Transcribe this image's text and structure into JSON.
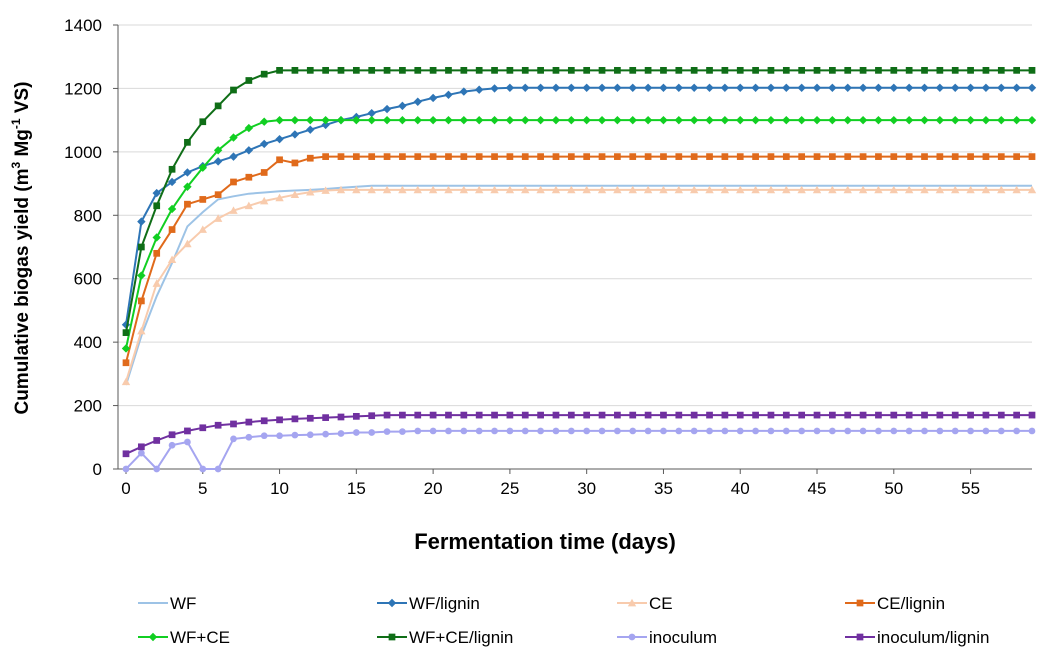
{
  "chart_data": {
    "type": "line",
    "xlabel": "Fermentation time (days)",
    "ylabel_parts": {
      "main": "Cumulative biogas yield (m",
      "sup1": "3",
      "mid": " Mg",
      "sup2": "-1",
      "end": " VS)"
    },
    "xlim": [
      0,
      59
    ],
    "ylim": [
      0,
      1400
    ],
    "xticks": [
      0,
      5,
      10,
      15,
      20,
      25,
      30,
      35,
      40,
      45,
      50,
      55
    ],
    "yticks": [
      0,
      200,
      400,
      600,
      800,
      1000,
      1200,
      1400
    ],
    "grid": "horizontal",
    "legend_position": "bottom",
    "x": [
      0,
      1,
      2,
      3,
      4,
      5,
      6,
      7,
      8,
      9,
      10,
      11,
      12,
      13,
      14,
      15,
      16,
      17,
      18,
      19,
      20,
      21,
      22,
      23,
      24,
      25,
      26,
      27,
      28,
      29,
      30,
      31,
      32,
      33,
      34,
      35,
      36,
      37,
      38,
      39,
      40,
      41,
      42,
      43,
      44,
      45,
      46,
      47,
      48,
      49,
      50,
      51,
      52,
      53,
      54,
      55,
      56,
      57,
      58,
      59
    ],
    "series": [
      {
        "name": "WF",
        "color": "#9dc3e6",
        "marker": "dash",
        "values": [
          265,
          420,
          545,
          650,
          765,
          810,
          850,
          860,
          868,
          872,
          876,
          878,
          880,
          883,
          887,
          890,
          893,
          893,
          893,
          893,
          893,
          893,
          893,
          893,
          893,
          893,
          893,
          893,
          893,
          893,
          893,
          893,
          893,
          893,
          893,
          893,
          893,
          893,
          893,
          893,
          893,
          893,
          893,
          893,
          893,
          893,
          893,
          893,
          893,
          893,
          893,
          893,
          893,
          893,
          893,
          893,
          893,
          893,
          893,
          893
        ]
      },
      {
        "name": "WF/lignin",
        "color": "#2e75b6",
        "marker": "diamond",
        "values": [
          455,
          780,
          870,
          905,
          935,
          955,
          970,
          985,
          1005,
          1025,
          1040,
          1055,
          1070,
          1085,
          1100,
          1110,
          1122,
          1135,
          1145,
          1158,
          1170,
          1180,
          1190,
          1196,
          1200,
          1202,
          1202,
          1202,
          1202,
          1202,
          1202,
          1202,
          1202,
          1202,
          1202,
          1202,
          1202,
          1202,
          1202,
          1202,
          1202,
          1202,
          1202,
          1202,
          1202,
          1202,
          1202,
          1202,
          1202,
          1202,
          1202,
          1202,
          1202,
          1202,
          1202,
          1202,
          1202,
          1202,
          1202,
          1202
        ]
      },
      {
        "name": "CE",
        "color": "#f8cbad",
        "marker": "triangle",
        "values": [
          275,
          435,
          585,
          660,
          710,
          755,
          790,
          815,
          830,
          845,
          855,
          865,
          873,
          878,
          880,
          880,
          880,
          880,
          880,
          880,
          880,
          880,
          880,
          880,
          880,
          880,
          880,
          880,
          880,
          880,
          880,
          880,
          880,
          880,
          880,
          880,
          880,
          880,
          880,
          880,
          880,
          880,
          880,
          880,
          880,
          880,
          880,
          880,
          880,
          880,
          880,
          880,
          880,
          880,
          880,
          880,
          880,
          880,
          880,
          880
        ]
      },
      {
        "name": "CE/lignin",
        "color": "#e06a1b",
        "marker": "square",
        "values": [
          335,
          530,
          680,
          755,
          835,
          850,
          865,
          905,
          920,
          935,
          975,
          965,
          980,
          985,
          985,
          985,
          985,
          985,
          985,
          985,
          985,
          985,
          985,
          985,
          985,
          985,
          985,
          985,
          985,
          985,
          985,
          985,
          985,
          985,
          985,
          985,
          985,
          985,
          985,
          985,
          985,
          985,
          985,
          985,
          985,
          985,
          985,
          985,
          985,
          985,
          985,
          985,
          985,
          985,
          985,
          985,
          985,
          985,
          985,
          985
        ]
      },
      {
        "name": "WF+CE",
        "color": "#11cf22",
        "marker": "diamond",
        "values": [
          380,
          610,
          730,
          820,
          890,
          950,
          1005,
          1045,
          1075,
          1095,
          1100,
          1100,
          1100,
          1100,
          1100,
          1100,
          1100,
          1100,
          1100,
          1100,
          1100,
          1100,
          1100,
          1100,
          1100,
          1100,
          1100,
          1100,
          1100,
          1100,
          1100,
          1100,
          1100,
          1100,
          1100,
          1100,
          1100,
          1100,
          1100,
          1100,
          1100,
          1100,
          1100,
          1100,
          1100,
          1100,
          1100,
          1100,
          1100,
          1100,
          1100,
          1100,
          1100,
          1100,
          1100,
          1100,
          1100,
          1100,
          1100,
          1100
        ]
      },
      {
        "name": "WF+CE/lignin",
        "color": "#0f6e17",
        "marker": "square",
        "values": [
          430,
          700,
          830,
          945,
          1030,
          1095,
          1145,
          1195,
          1225,
          1245,
          1257,
          1257,
          1257,
          1257,
          1257,
          1257,
          1257,
          1257,
          1257,
          1257,
          1257,
          1257,
          1257,
          1257,
          1257,
          1257,
          1257,
          1257,
          1257,
          1257,
          1257,
          1257,
          1257,
          1257,
          1257,
          1257,
          1257,
          1257,
          1257,
          1257,
          1257,
          1257,
          1257,
          1257,
          1257,
          1257,
          1257,
          1257,
          1257,
          1257,
          1257,
          1257,
          1257,
          1257,
          1257,
          1257,
          1257,
          1257,
          1257,
          1257
        ]
      },
      {
        "name": "inoculum",
        "color": "#a5a5f0",
        "marker": "circle",
        "values": [
          0,
          50,
          0,
          75,
          85,
          0,
          0,
          95,
          100,
          105,
          105,
          107,
          108,
          110,
          112,
          115,
          115,
          118,
          118,
          120,
          120,
          120,
          120,
          120,
          120,
          120,
          120,
          120,
          120,
          120,
          120,
          120,
          120,
          120,
          120,
          120,
          120,
          120,
          120,
          120,
          120,
          120,
          120,
          120,
          120,
          120,
          120,
          120,
          120,
          120,
          120,
          120,
          120,
          120,
          120,
          120,
          120,
          120,
          120,
          120
        ]
      },
      {
        "name": "inoculum/lignin",
        "color": "#7030a0",
        "marker": "square",
        "values": [
          48,
          70,
          90,
          108,
          120,
          130,
          138,
          142,
          148,
          152,
          155,
          158,
          160,
          162,
          164,
          166,
          168,
          170,
          170,
          170,
          170,
          170,
          170,
          170,
          170,
          170,
          170,
          170,
          170,
          170,
          170,
          170,
          170,
          170,
          170,
          170,
          170,
          170,
          170,
          170,
          170,
          170,
          170,
          170,
          170,
          170,
          170,
          170,
          170,
          170,
          170,
          170,
          170,
          170,
          170,
          170,
          170,
          170,
          170,
          170
        ]
      }
    ]
  }
}
